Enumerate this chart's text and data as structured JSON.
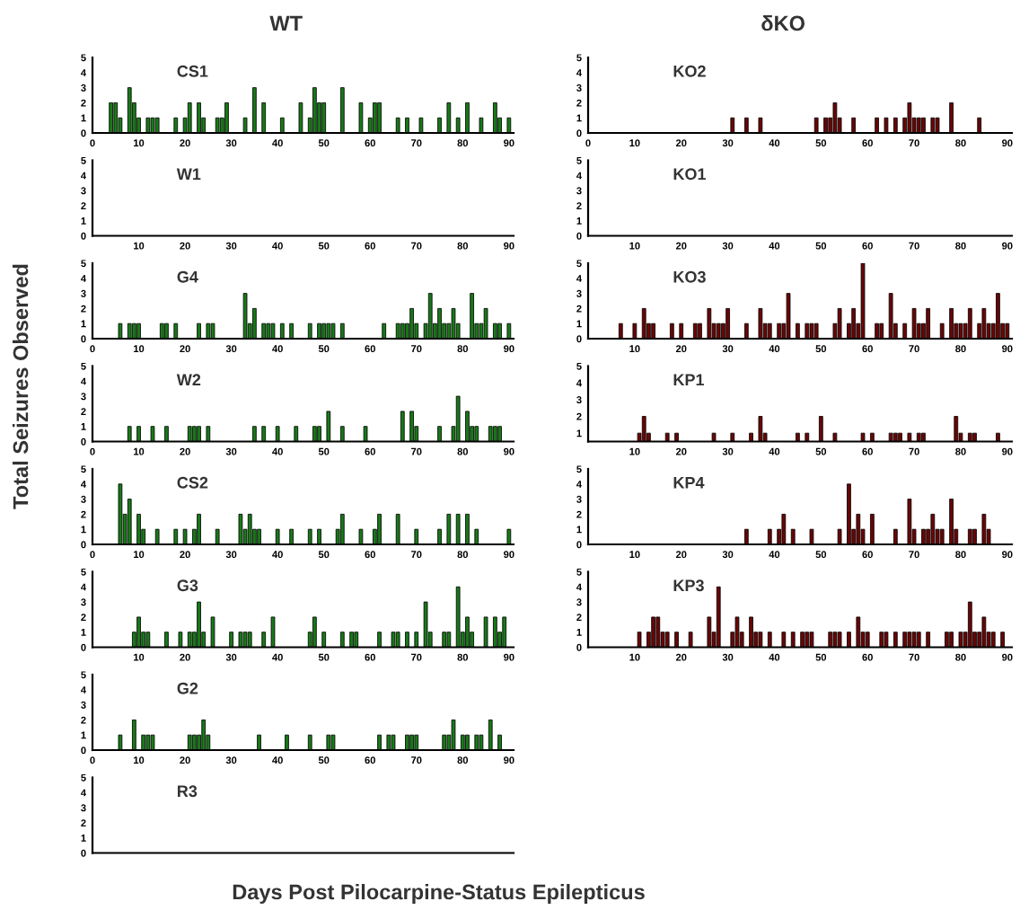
{
  "chart_data": [
    {
      "type": "bar",
      "title": "CS1",
      "annotations": [
        "WT"
      ],
      "xlabel": "Days Post Pilocarpine-Status Epilepticus",
      "color": "#177a17",
      "xlim": [
        0,
        91
      ],
      "ylim": [
        0,
        5
      ],
      "xticks": [
        0,
        10,
        20,
        30,
        40,
        50,
        60,
        70,
        80,
        90
      ],
      "yticks": [
        0,
        1,
        2,
        3,
        4,
        5
      ],
      "x": [
        4,
        5,
        6,
        8,
        9,
        10,
        12,
        13,
        14,
        18,
        20,
        21,
        23,
        24,
        27,
        28,
        29,
        33,
        35,
        37,
        41,
        45,
        47,
        48,
        49,
        50,
        54,
        58,
        60,
        61,
        62,
        66,
        68,
        71,
        75,
        77,
        79,
        81,
        84,
        87,
        88,
        90
      ],
      "values": [
        2,
        2,
        1,
        3,
        2,
        1,
        1,
        1,
        1,
        1,
        1,
        2,
        2,
        1,
        1,
        1,
        2,
        1,
        3,
        2,
        1,
        2,
        1,
        3,
        2,
        2,
        3,
        2,
        1,
        2,
        2,
        1,
        1,
        1,
        1,
        2,
        1,
        2,
        1,
        2,
        1,
        1
      ]
    },
    {
      "type": "bar",
      "title": "W1",
      "color": "#177a17",
      "xlim": [
        0,
        91
      ],
      "ylim": [
        0,
        5
      ],
      "xticks": [
        10,
        20,
        30,
        40,
        50,
        60,
        70,
        80,
        90
      ],
      "yticks": [
        0,
        1,
        2,
        3,
        4,
        5
      ],
      "x": [
        1,
        2,
        3,
        4,
        5,
        6,
        7,
        8,
        9,
        10,
        11,
        12,
        13,
        14,
        15,
        16,
        17,
        18,
        19,
        20,
        21,
        22,
        23,
        24,
        25,
        26,
        27,
        28,
        29,
        30,
        31,
        32,
        33,
        34,
        35,
        36,
        37,
        38,
        39,
        40,
        41,
        42,
        43,
        44,
        45,
        46,
        47,
        48,
        49,
        50,
        51,
        52,
        53,
        54,
        55,
        56,
        57,
        58,
        59,
        60,
        61,
        62,
        63,
        64,
        65,
        66,
        67,
        68,
        69,
        70,
        71,
        72,
        73,
        74,
        75,
        76,
        77,
        78,
        79,
        80,
        81,
        82,
        83,
        84,
        85,
        86,
        87,
        88,
        89,
        90
      ],
      "values": [
        0,
        0,
        0,
        0,
        0,
        0,
        0,
        0,
        0,
        0,
        0,
        0,
        0,
        0,
        0,
        0,
        0,
        0,
        0,
        0,
        0,
        0,
        0,
        0,
        0,
        0,
        0,
        0,
        0,
        0,
        0,
        0,
        0,
        0,
        0,
        0,
        0,
        0,
        0,
        0,
        0,
        0,
        0,
        0,
        0,
        0,
        0,
        0,
        0,
        0,
        0,
        0,
        0,
        0,
        0,
        0,
        0,
        0,
        0,
        0,
        0,
        0,
        0,
        0,
        0,
        0,
        0,
        0,
        0,
        0,
        0,
        0,
        0,
        0,
        0,
        0,
        0,
        0,
        0,
        0,
        0,
        0,
        0,
        0,
        0,
        0,
        0,
        0,
        0,
        0
      ]
    },
    {
      "type": "bar",
      "title": "G4",
      "color": "#177a17",
      "xlim": [
        0,
        91
      ],
      "ylim": [
        0,
        5
      ],
      "xticks": [
        0,
        10,
        20,
        30,
        40,
        50,
        60,
        70,
        80,
        90
      ],
      "yticks": [
        0,
        1,
        2,
        3,
        4,
        5
      ],
      "x": [
        6,
        8,
        9,
        10,
        15,
        16,
        18,
        23,
        25,
        26,
        33,
        34,
        35,
        37,
        38,
        39,
        41,
        43,
        47,
        49,
        50,
        51,
        52,
        54,
        63,
        66,
        67,
        68,
        69,
        70,
        72,
        73,
        74,
        75,
        76,
        77,
        78,
        79,
        82,
        83,
        84,
        85,
        87,
        88,
        90
      ],
      "values": [
        1,
        1,
        1,
        1,
        1,
        1,
        1,
        1,
        1,
        1,
        3,
        1,
        2,
        1,
        1,
        1,
        1,
        1,
        1,
        1,
        1,
        1,
        1,
        1,
        1,
        1,
        1,
        1,
        2,
        1,
        1,
        3,
        1,
        2,
        1,
        1,
        2,
        1,
        3,
        1,
        1,
        2,
        1,
        1,
        1
      ]
    },
    {
      "type": "bar",
      "title": "W2",
      "ylabel": "Total Seizures Observed",
      "color": "#177a17",
      "xlim": [
        0,
        91
      ],
      "ylim": [
        0,
        5
      ],
      "xticks": [
        0,
        10,
        20,
        30,
        40,
        50,
        60,
        70,
        80,
        90
      ],
      "yticks": [
        0,
        1,
        2,
        3,
        4,
        5
      ],
      "x": [
        8,
        10,
        13,
        16,
        21,
        22,
        23,
        25,
        35,
        37,
        40,
        44,
        48,
        49,
        51,
        54,
        59,
        67,
        69,
        70,
        75,
        78,
        79,
        81,
        82,
        83,
        86,
        87,
        88
      ],
      "values": [
        1,
        1,
        1,
        1,
        1,
        1,
        1,
        1,
        1,
        1,
        1,
        1,
        1,
        1,
        2,
        1,
        1,
        2,
        2,
        1,
        1,
        1,
        3,
        2,
        1,
        1,
        1,
        1,
        1
      ]
    },
    {
      "type": "bar",
      "title": "CS2",
      "color": "#177a17",
      "xlim": [
        0,
        91
      ],
      "ylim": [
        0,
        5
      ],
      "xticks": [
        0,
        10,
        20,
        30,
        40,
        50,
        60,
        70,
        80,
        90
      ],
      "yticks": [
        0,
        1,
        2,
        3,
        4,
        5
      ],
      "x": [
        6,
        7,
        8,
        10,
        11,
        14,
        18,
        20,
        22,
        23,
        27,
        32,
        33,
        34,
        35,
        36,
        40,
        43,
        47,
        49,
        53,
        54,
        58,
        61,
        62,
        66,
        70,
        75,
        77,
        79,
        81,
        83,
        90
      ],
      "values": [
        4,
        2,
        3,
        2,
        1,
        1,
        1,
        1,
        1,
        2,
        1,
        2,
        1,
        2,
        1,
        1,
        1,
        1,
        1,
        1,
        1,
        2,
        1,
        1,
        2,
        2,
        1,
        1,
        2,
        2,
        2,
        1,
        1
      ]
    },
    {
      "type": "bar",
      "title": "G3",
      "color": "#177a17",
      "xlim": [
        0,
        91
      ],
      "ylim": [
        0,
        5
      ],
      "xticks": [
        10,
        20,
        30,
        40,
        50,
        60,
        70,
        80,
        90
      ],
      "yticks": [
        0,
        1,
        2,
        3,
        4,
        5
      ],
      "x": [
        9,
        10,
        11,
        12,
        16,
        19,
        21,
        22,
        23,
        24,
        26,
        30,
        32,
        33,
        34,
        37,
        39,
        47,
        48,
        50,
        54,
        56,
        57,
        62,
        65,
        66,
        68,
        70,
        72,
        73,
        76,
        77,
        79,
        80,
        81,
        82,
        85,
        87,
        88,
        89
      ],
      "values": [
        1,
        2,
        1,
        1,
        1,
        1,
        1,
        1,
        3,
        1,
        2,
        1,
        1,
        1,
        1,
        1,
        2,
        1,
        2,
        1,
        1,
        1,
        1,
        1,
        1,
        1,
        1,
        1,
        3,
        1,
        1,
        1,
        4,
        1,
        2,
        1,
        2,
        2,
        1,
        2
      ]
    },
    {
      "type": "bar",
      "title": "G2",
      "color": "#177a17",
      "xlim": [
        0,
        91
      ],
      "ylim": [
        0,
        5
      ],
      "xticks": [
        0,
        10,
        20,
        30,
        40,
        50,
        60,
        70,
        80,
        90
      ],
      "yticks": [
        0,
        1,
        2,
        3,
        4,
        5
      ],
      "x": [
        6,
        9,
        11,
        12,
        13,
        21,
        22,
        23,
        24,
        25,
        36,
        42,
        47,
        51,
        52,
        62,
        64,
        65,
        68,
        69,
        70,
        76,
        77,
        78,
        80,
        81,
        83,
        84,
        86,
        88
      ],
      "values": [
        1,
        2,
        1,
        1,
        1,
        1,
        1,
        1,
        2,
        1,
        1,
        1,
        1,
        1,
        1,
        1,
        1,
        1,
        1,
        1,
        1,
        1,
        1,
        2,
        1,
        1,
        1,
        1,
        2,
        1
      ]
    },
    {
      "type": "bar",
      "title": "R3",
      "color": "#177a17",
      "ylim": [
        0,
        5
      ],
      "yticks": [
        0,
        1,
        2,
        3,
        4,
        5
      ],
      "categories": [
        null,
        null,
        null,
        null,
        null,
        null,
        null,
        null,
        null,
        null,
        null,
        null,
        null,
        null,
        null,
        null,
        null,
        null,
        null,
        null,
        null,
        null,
        null,
        null,
        null,
        null,
        null,
        null,
        null,
        null,
        null,
        null,
        null,
        null,
        null,
        null,
        null,
        null,
        null,
        null,
        null,
        null,
        null,
        null,
        null,
        null,
        null,
        null,
        null,
        null,
        null,
        null,
        null,
        null,
        null,
        null,
        null,
        null,
        null,
        null,
        null,
        null,
        null,
        null,
        null,
        null,
        null,
        null,
        null,
        null,
        null,
        null,
        null,
        null,
        null,
        null,
        null,
        null,
        null,
        null,
        null,
        null,
        null,
        null,
        null,
        null,
        null,
        null,
        null,
        null
      ],
      "values": [
        0,
        0,
        0,
        0,
        0,
        0,
        0,
        0,
        0,
        0,
        0,
        0,
        0,
        0,
        0,
        0,
        0,
        0,
        0,
        0,
        0,
        0,
        0,
        0,
        0,
        0,
        0,
        0,
        0,
        0,
        0,
        0,
        0,
        0,
        0,
        0,
        0,
        0,
        0,
        0,
        0,
        0,
        0,
        0,
        0,
        0,
        0,
        0,
        0,
        0,
        0,
        0,
        0,
        0,
        0,
        0,
        0,
        0,
        0,
        0,
        0,
        0,
        0,
        0,
        0,
        0,
        0,
        0,
        0,
        0,
        0,
        0,
        0,
        0,
        0,
        0,
        0,
        0,
        0,
        0,
        0,
        0,
        0,
        0,
        0,
        0,
        0,
        0,
        0,
        0
      ]
    },
    {
      "type": "bar",
      "title": "KO2",
      "annotations": [
        "δKO"
      ],
      "color": "#6a0505",
      "xlim": [
        0,
        91
      ],
      "ylim": [
        0,
        5
      ],
      "xticks": [
        0,
        10,
        20,
        30,
        40,
        50,
        60,
        70,
        80,
        90
      ],
      "yticks": [
        0,
        1,
        2,
        3,
        4,
        5
      ],
      "x": [
        1,
        2,
        3,
        4,
        5,
        6,
        7,
        8,
        9,
        10,
        11,
        12,
        13,
        14,
        15,
        16,
        17,
        18,
        19,
        20,
        21,
        22,
        23,
        24,
        25,
        26,
        27,
        28,
        29,
        30,
        31,
        34,
        37,
        49,
        51,
        52,
        53,
        54,
        57,
        62,
        64,
        66,
        68,
        69,
        70,
        71,
        72,
        74,
        75,
        78,
        84
      ],
      "values": [
        0,
        0,
        0,
        0,
        0,
        0,
        0,
        0,
        0,
        0,
        0,
        0,
        0,
        0,
        0,
        0,
        0,
        0,
        0,
        0,
        0,
        0,
        0,
        0,
        0,
        0,
        0,
        0,
        0,
        0,
        1,
        1,
        1,
        1,
        1,
        1,
        2,
        1,
        1,
        1,
        1,
        1,
        1,
        2,
        1,
        1,
        1,
        1,
        1,
        2,
        1
      ]
    },
    {
      "type": "bar",
      "title": "KO1",
      "color": "#6a0505",
      "xlim": [
        0,
        91
      ],
      "ylim": [
        0,
        5
      ],
      "xticks": [
        10,
        20,
        30,
        40,
        50,
        60,
        70,
        80,
        90
      ],
      "yticks": [
        0,
        1,
        2,
        3,
        4,
        5
      ],
      "x": [
        1,
        2,
        3,
        4,
        5,
        6,
        7,
        8,
        9,
        10,
        11,
        12,
        13,
        14,
        15,
        16,
        17,
        18,
        19,
        20,
        21,
        22,
        23,
        24,
        25,
        26,
        27,
        28,
        29,
        30,
        31,
        32,
        33,
        34,
        35,
        36,
        37,
        38,
        39,
        40,
        41,
        42,
        43,
        44,
        45,
        46,
        47,
        48,
        49,
        50,
        51,
        52,
        53,
        54,
        55,
        56,
        57,
        58,
        59,
        60,
        61,
        62,
        63,
        64,
        65,
        66,
        67,
        68,
        69,
        70,
        71,
        72,
        73,
        74,
        75,
        76,
        77,
        78,
        79,
        80,
        81,
        82,
        83,
        84,
        85,
        86,
        87,
        88,
        89,
        90
      ],
      "values": [
        0,
        0,
        0,
        0,
        0,
        0,
        0,
        0,
        0,
        0,
        0,
        0,
        0,
        0,
        0,
        0,
        0,
        0,
        0,
        0,
        0,
        0,
        0,
        0,
        0,
        0,
        0,
        0,
        0,
        0,
        0,
        0,
        0,
        0,
        0,
        0,
        0,
        0,
        0,
        0,
        0,
        0,
        0,
        0,
        0,
        0,
        0,
        0,
        0,
        0,
        0,
        0,
        0,
        0,
        0,
        0,
        0,
        0,
        0,
        0,
        0,
        0,
        0,
        0,
        0,
        0,
        0,
        0,
        0,
        0,
        0,
        0,
        0,
        0,
        0,
        0,
        0,
        0,
        0,
        0,
        0,
        0,
        0,
        0,
        0,
        0,
        0,
        0,
        0,
        0
      ]
    },
    {
      "type": "bar",
      "title": "KO3",
      "color": "#6a0505",
      "xlim": [
        0,
        91
      ],
      "ylim": [
        0,
        5
      ],
      "xticks": [
        10,
        20,
        30,
        40,
        50,
        60,
        70,
        80,
        90
      ],
      "yticks": [
        0,
        1,
        2,
        3,
        4,
        5
      ],
      "x": [
        1,
        2,
        3,
        4,
        5,
        6,
        7,
        10,
        12,
        13,
        14,
        18,
        20,
        23,
        24,
        26,
        27,
        28,
        29,
        30,
        34,
        37,
        38,
        39,
        41,
        42,
        43,
        45,
        47,
        48,
        49,
        53,
        54,
        56,
        57,
        58,
        59,
        62,
        63,
        65,
        66,
        68,
        70,
        71,
        72,
        73,
        76,
        78,
        79,
        80,
        81,
        82,
        84,
        85,
        86,
        87,
        88,
        89,
        90
      ],
      "values": [
        0,
        0,
        0,
        0,
        0,
        0,
        1,
        1,
        2,
        1,
        1,
        1,
        1,
        1,
        1,
        2,
        1,
        1,
        1,
        2,
        1,
        2,
        1,
        1,
        1,
        1,
        3,
        1,
        1,
        1,
        1,
        1,
        2,
        1,
        2,
        1,
        5,
        1,
        1,
        3,
        1,
        1,
        2,
        1,
        1,
        2,
        1,
        2,
        1,
        1,
        1,
        2,
        1,
        2,
        1,
        1,
        3,
        1,
        1
      ]
    },
    {
      "type": "bar",
      "title": "KP1",
      "color": "#6a0505",
      "xlim": [
        0,
        91
      ],
      "ylim": [
        0.5,
        5
      ],
      "xticks": [
        10,
        20,
        30,
        40,
        50,
        60,
        70,
        80,
        90
      ],
      "yticks": [
        1,
        2,
        3,
        4,
        5
      ],
      "x": [
        11,
        12,
        13,
        17,
        19,
        27,
        31,
        35,
        37,
        38,
        45,
        47,
        50,
        53,
        59,
        61,
        65,
        66,
        67,
        69,
        71,
        72,
        79,
        80,
        82,
        83,
        88
      ],
      "values": [
        1,
        2,
        1,
        1,
        1,
        1,
        1,
        1,
        2,
        1,
        1,
        1,
        2,
        1,
        1,
        1,
        1,
        1,
        1,
        1,
        1,
        1,
        2,
        1,
        1,
        1,
        1
      ]
    },
    {
      "type": "bar",
      "title": "KP4",
      "color": "#6a0505",
      "xlim": [
        0,
        91
      ],
      "ylim": [
        0,
        5
      ],
      "xticks": [
        10,
        20,
        30,
        40,
        50,
        60,
        70,
        80,
        90
      ],
      "yticks": [
        0,
        1,
        2,
        3,
        4,
        5
      ],
      "x": [
        1,
        2,
        3,
        4,
        5,
        6,
        7,
        8,
        9,
        10,
        11,
        12,
        13,
        14,
        15,
        16,
        17,
        18,
        19,
        20,
        21,
        22,
        23,
        24,
        25,
        26,
        27,
        28,
        29,
        30,
        31,
        32,
        33,
        34,
        39,
        41,
        42,
        44,
        48,
        54,
        56,
        57,
        58,
        59,
        61,
        66,
        69,
        70,
        72,
        73,
        74,
        75,
        76,
        78,
        79,
        82,
        83,
        85,
        86
      ],
      "values": [
        0,
        0,
        0,
        0,
        0,
        0,
        0,
        0,
        0,
        0,
        0,
        0,
        0,
        0,
        0,
        0,
        0,
        0,
        0,
        0,
        0,
        0,
        0,
        0,
        0,
        0,
        0,
        0,
        0,
        0,
        0,
        0,
        0,
        1,
        1,
        1,
        2,
        1,
        1,
        1,
        4,
        1,
        2,
        1,
        2,
        1,
        3,
        1,
        1,
        1,
        2,
        1,
        1,
        3,
        1,
        1,
        1,
        2,
        1
      ]
    },
    {
      "type": "bar",
      "title": "KP3",
      "color": "#6a0505",
      "xlim": [
        0,
        91
      ],
      "ylim": [
        0,
        5
      ],
      "xticks": [
        10,
        20,
        30,
        40,
        50,
        60,
        70,
        80,
        90
      ],
      "yticks": [
        0,
        1,
        2,
        3,
        4,
        5
      ],
      "x": [
        1,
        2,
        3,
        4,
        5,
        6,
        7,
        8,
        9,
        10,
        11,
        13,
        14,
        15,
        16,
        17,
        19,
        22,
        26,
        27,
        28,
        31,
        32,
        33,
        35,
        36,
        37,
        39,
        42,
        44,
        46,
        47,
        48,
        52,
        53,
        54,
        56,
        58,
        59,
        60,
        63,
        64,
        66,
        68,
        69,
        70,
        71,
        73,
        77,
        78,
        80,
        81,
        82,
        83,
        84,
        85,
        86,
        87,
        89
      ],
      "values": [
        0,
        0,
        0,
        0,
        0,
        0,
        0,
        0,
        0,
        0,
        1,
        1,
        2,
        2,
        1,
        1,
        1,
        1,
        2,
        1,
        4,
        1,
        2,
        1,
        2,
        1,
        1,
        1,
        1,
        1,
        1,
        1,
        1,
        1,
        1,
        1,
        1,
        2,
        1,
        1,
        1,
        1,
        1,
        1,
        1,
        1,
        1,
        1,
        1,
        1,
        1,
        1,
        3,
        1,
        1,
        2,
        1,
        1,
        1
      ]
    }
  ]
}
